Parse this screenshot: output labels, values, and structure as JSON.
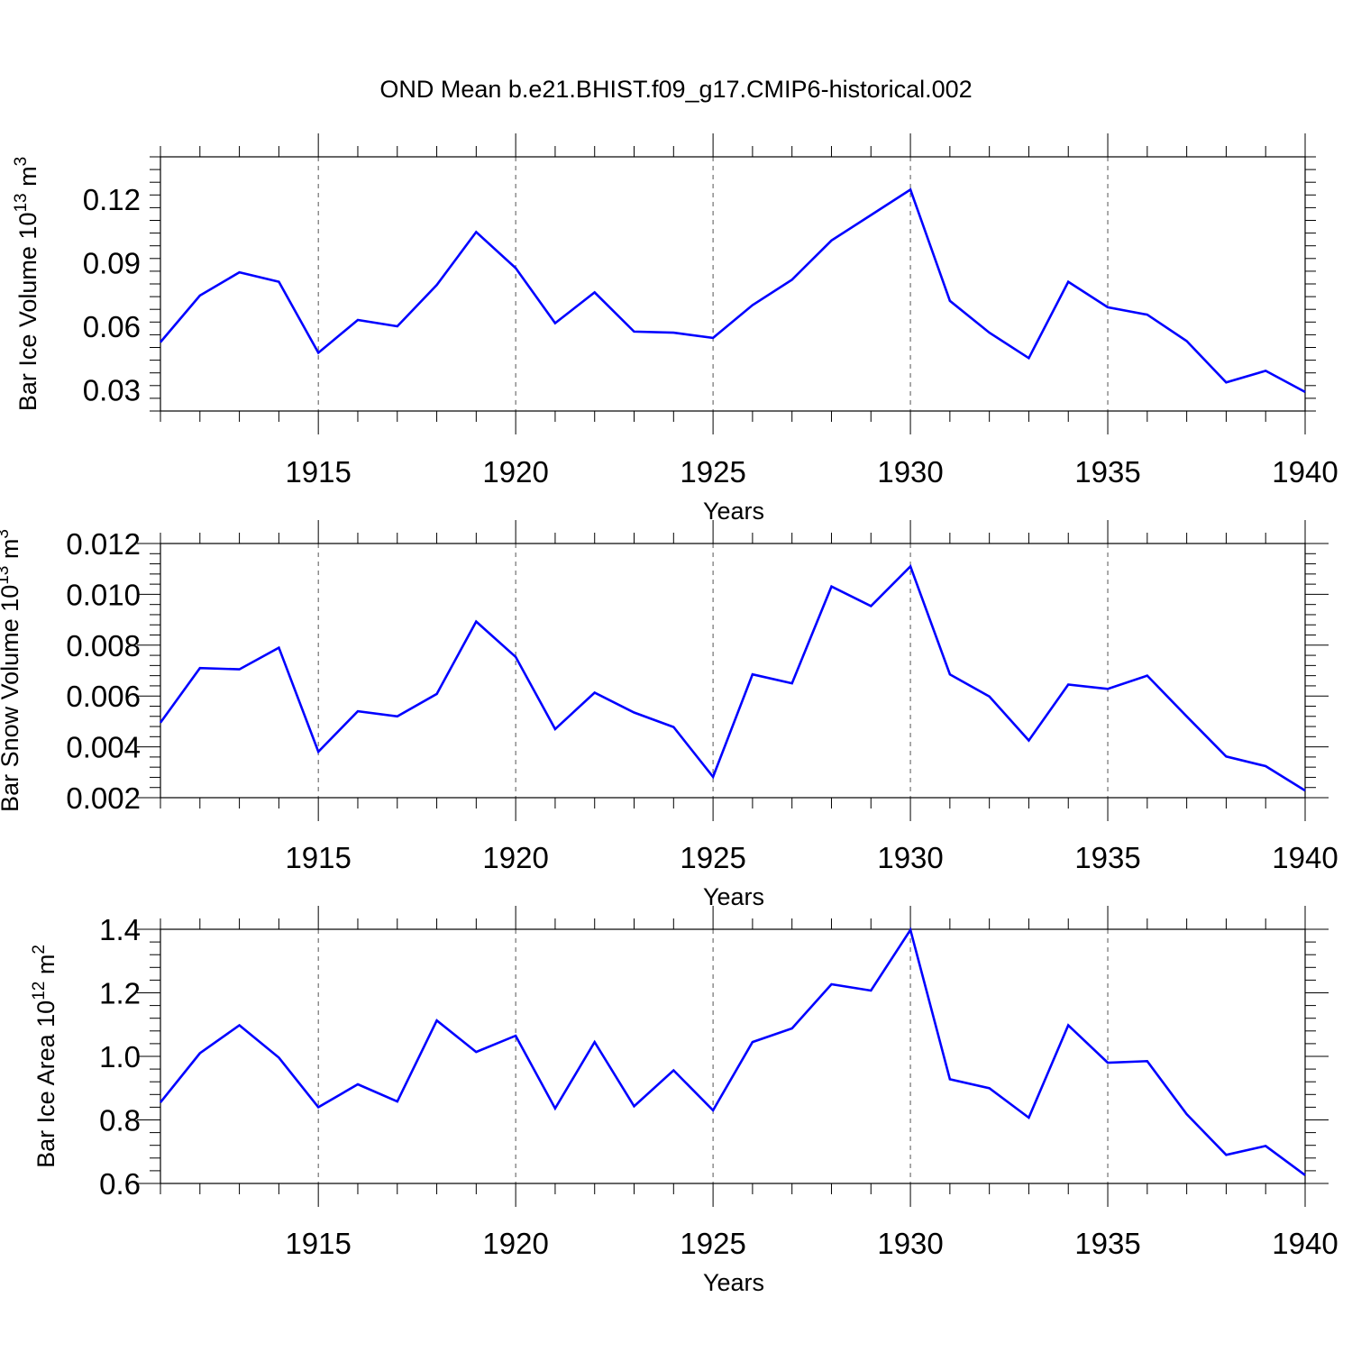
{
  "title": "OND Mean b.e21.BHIST.f09_g17.CMIP6-historical.002",
  "colors": {
    "line": "#0000ff",
    "axis": "#000000",
    "grid": "#555555"
  },
  "chart_data": [
    {
      "type": "line",
      "ylabel_main": "Bar Ice Volume 10",
      "ylabel_exp": "13",
      "ylabel_unit": " m",
      "ylabel_unit_exp": "3",
      "xlabel": "Years",
      "xlim": [
        1911,
        1940
      ],
      "ylim": [
        0.02,
        0.14
      ],
      "yticks": [
        0.03,
        0.06,
        0.09,
        0.12
      ],
      "ytick_labels": [
        "0.03",
        "0.06",
        "0.09",
        "0.12"
      ],
      "xticks": [
        1915,
        1920,
        1925,
        1930,
        1935,
        1940
      ],
      "x": [
        1911,
        1912,
        1913,
        1914,
        1915,
        1916,
        1917,
        1918,
        1919,
        1920,
        1921,
        1922,
        1923,
        1924,
        1925,
        1926,
        1927,
        1928,
        1929,
        1930,
        1931,
        1932,
        1933,
        1934,
        1935,
        1936,
        1937,
        1938,
        1939,
        1940
      ],
      "series": [
        {
          "values": [
            0.0525,
            0.0745,
            0.0855,
            0.081,
            0.0475,
            0.063,
            0.06,
            0.0795,
            0.1045,
            0.0875,
            0.0615,
            0.076,
            0.0575,
            0.057,
            0.0545,
            0.07,
            0.082,
            0.1005,
            0.1125,
            0.1245,
            0.072,
            0.057,
            0.045,
            0.081,
            0.069,
            0.0655,
            0.053,
            0.0335,
            0.039,
            0.029
          ]
        }
      ],
      "grid": "vertical dashed at major x ticks"
    },
    {
      "type": "line",
      "ylabel_main": "Bar Snow Volume 10",
      "ylabel_exp": "13",
      "ylabel_unit": " m",
      "ylabel_unit_exp": "3",
      "xlabel": "Years",
      "xlim": [
        1911,
        1940
      ],
      "ylim": [
        0.002,
        0.012
      ],
      "yticks": [
        0.002,
        0.004,
        0.006,
        0.008,
        0.01,
        0.012
      ],
      "ytick_labels": [
        "0.002",
        "0.004",
        "0.006",
        "0.008",
        "0.010",
        "0.012"
      ],
      "xticks": [
        1915,
        1920,
        1925,
        1930,
        1935,
        1940
      ],
      "x": [
        1911,
        1912,
        1913,
        1914,
        1915,
        1916,
        1917,
        1918,
        1919,
        1920,
        1921,
        1922,
        1923,
        1924,
        1925,
        1926,
        1927,
        1928,
        1929,
        1930,
        1931,
        1932,
        1933,
        1934,
        1935,
        1936,
        1937,
        1938,
        1939,
        1940
      ],
      "series": [
        {
          "values": [
            0.00495,
            0.0071,
            0.00705,
            0.0079,
            0.00381,
            0.0054,
            0.0052,
            0.00608,
            0.00893,
            0.00754,
            0.0047,
            0.00613,
            0.00535,
            0.00478,
            0.00282,
            0.00685,
            0.0065,
            0.01031,
            0.00954,
            0.0111,
            0.00685,
            0.00598,
            0.00425,
            0.00645,
            0.00628,
            0.0068,
            0.0052,
            0.00362,
            0.00324,
            0.00228
          ]
        }
      ],
      "grid": "vertical dashed at major x ticks"
    },
    {
      "type": "line",
      "ylabel_main": "Bar Ice Area 10",
      "ylabel_exp": "12",
      "ylabel_unit": " m",
      "ylabel_unit_exp": "2",
      "xlabel": "Years",
      "xlim": [
        1911,
        1940
      ],
      "ylim": [
        0.6,
        1.4
      ],
      "yticks": [
        0.6,
        0.8,
        1.0,
        1.2,
        1.4
      ],
      "ytick_labels": [
        "0.6",
        "0.8",
        "1.0",
        "1.2",
        "1.4"
      ],
      "xticks": [
        1915,
        1920,
        1925,
        1930,
        1935,
        1940
      ],
      "x": [
        1911,
        1912,
        1913,
        1914,
        1915,
        1916,
        1917,
        1918,
        1919,
        1920,
        1921,
        1922,
        1923,
        1924,
        1925,
        1926,
        1927,
        1928,
        1929,
        1930,
        1931,
        1932,
        1933,
        1934,
        1935,
        1936,
        1937,
        1938,
        1939,
        1940
      ],
      "series": [
        {
          "values": [
            0.855,
            1.01,
            1.098,
            0.996,
            0.84,
            0.912,
            0.858,
            1.113,
            1.014,
            1.065,
            0.836,
            1.045,
            0.843,
            0.956,
            0.83,
            1.045,
            1.088,
            1.227,
            1.207,
            1.398,
            0.928,
            0.9,
            0.807,
            1.098,
            0.98,
            0.985,
            0.818,
            0.69,
            0.718,
            0.626
          ]
        }
      ],
      "grid": "vertical dashed at major x ticks"
    }
  ]
}
